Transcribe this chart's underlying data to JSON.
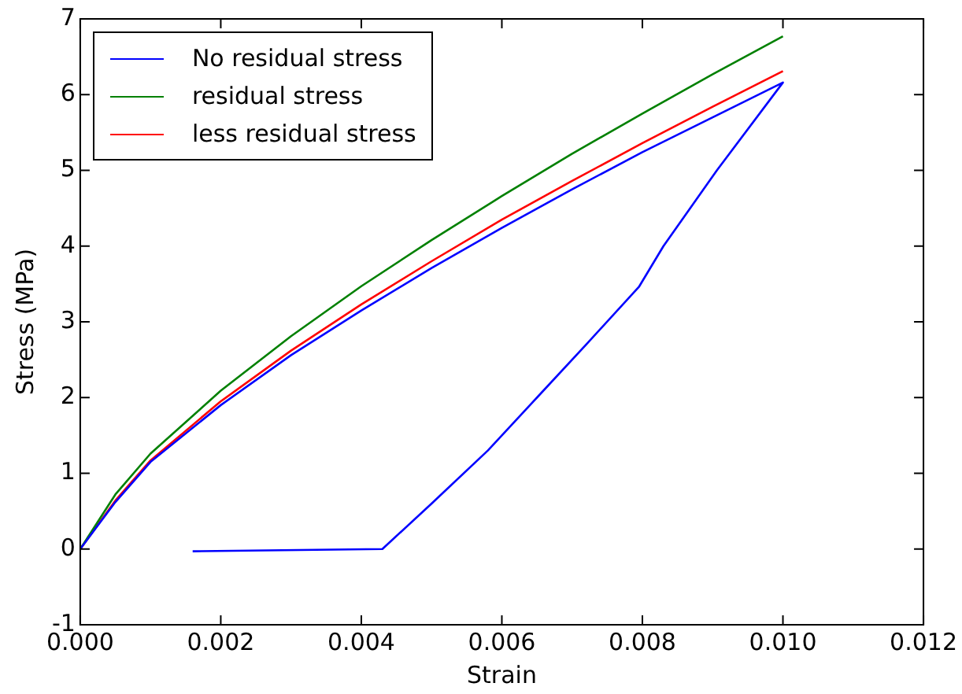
{
  "chart_data": {
    "type": "line",
    "xlabel": "Strain",
    "ylabel": "Stress (MPa)",
    "xlim": [
      0,
      0.012
    ],
    "xticks": [
      {
        "value": 0,
        "label": "0.000"
      },
      {
        "value": 0.002,
        "label": "0.002"
      },
      {
        "value": 0.004,
        "label": "0.004"
      },
      {
        "value": 0.006,
        "label": "0.006"
      },
      {
        "value": 0.008,
        "label": "0.008"
      },
      {
        "value": 0.01,
        "label": "0.010"
      },
      {
        "value": 0.012,
        "label": "0.012"
      }
    ],
    "ylim": [
      -1,
      7
    ],
    "yticks": [
      -1,
      0,
      1,
      2,
      3,
      4,
      5,
      6,
      7
    ],
    "grid": false,
    "legend": "top left",
    "marker": "none",
    "line_style": "solid",
    "series": [
      {
        "name": "No residual stress",
        "color": "#0000ff",
        "x": [
          0,
          0.0005,
          0.001,
          0.002,
          0.003,
          0.004,
          0.005,
          0.006,
          0.007,
          0.008,
          0.009,
          0.01,
          0.00906,
          0.0083,
          0.00795,
          0.0072,
          0.0065,
          0.0058,
          0.005,
          0.0043,
          0.0016
        ],
        "values": [
          0,
          0.62,
          1.15,
          1.9,
          2.56,
          3.15,
          3.71,
          4.24,
          4.75,
          5.24,
          5.7,
          6.16,
          5.0,
          4.0,
          3.46,
          2.7,
          2.0,
          1.3,
          0.6,
          0,
          -0.03
        ]
      },
      {
        "name": "residual stress",
        "color": "#008000",
        "x": [
          0,
          0.0005,
          0.001,
          0.002,
          0.003,
          0.004,
          0.005,
          0.006,
          0.007,
          0.008,
          0.009,
          0.01
        ],
        "values": [
          0,
          0.72,
          1.26,
          2.09,
          2.81,
          3.47,
          4.08,
          4.66,
          5.22,
          5.75,
          6.27,
          6.77
        ]
      },
      {
        "name": "less residual stress",
        "color": "#ff0000",
        "x": [
          0,
          0.0005,
          0.001,
          0.002,
          0.003,
          0.004,
          0.005,
          0.006,
          0.007,
          0.008,
          0.009,
          0.01
        ],
        "values": [
          0,
          0.64,
          1.17,
          1.95,
          2.62,
          3.23,
          3.8,
          4.35,
          4.86,
          5.36,
          5.84,
          6.31
        ]
      }
    ]
  }
}
